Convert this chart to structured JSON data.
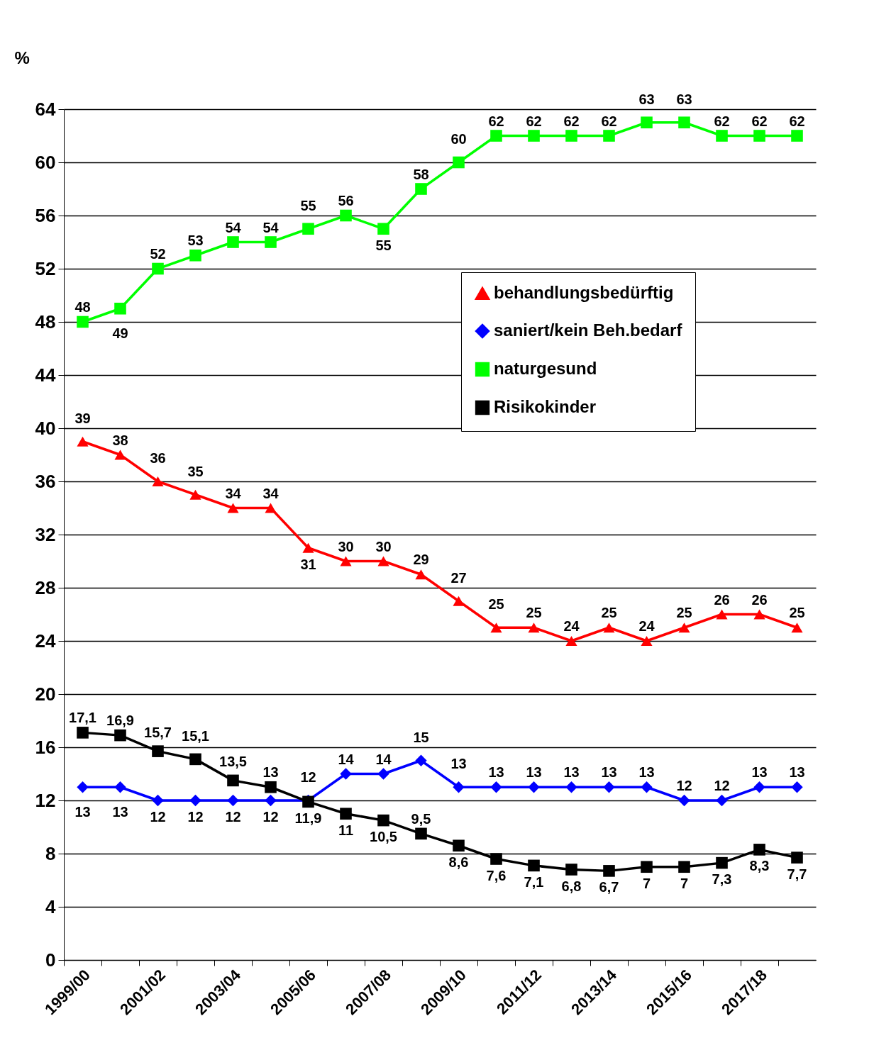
{
  "chart_data": {
    "type": "line",
    "ylabel": "%",
    "categories": [
      "1999/00",
      null,
      "2001/02",
      null,
      "2003/04",
      null,
      "2005/06",
      null,
      "2007/08",
      null,
      "2009/10",
      null,
      "2011/12",
      null,
      "2013/14",
      null,
      "2015/16",
      null,
      "2017/18",
      null
    ],
    "ylim": [
      0,
      64
    ],
    "yticks": [
      0,
      4,
      8,
      12,
      16,
      20,
      24,
      28,
      32,
      36,
      40,
      44,
      48,
      52,
      56,
      60,
      64
    ],
    "grid": "y",
    "legend": "top right",
    "series": [
      {
        "name": "behandlungsbedürftig",
        "color": "#ff0000",
        "marker": "triangle",
        "values": [
          39,
          38,
          36,
          35,
          34,
          34,
          31,
          30,
          30,
          29,
          27,
          25,
          25,
          24,
          25,
          24,
          25,
          26,
          26,
          25
        ],
        "value_labels": [
          "39",
          "38",
          "36",
          "35",
          "34",
          "34",
          "31",
          "30",
          "30",
          "29",
          "27",
          "25",
          "25",
          "24",
          "25",
          "24",
          "25",
          "26",
          "26",
          "25"
        ]
      },
      {
        "name": "saniert/kein Beh.bedarf",
        "color": "#0000ff",
        "marker": "diamond",
        "values": [
          13,
          13,
          12,
          12,
          12,
          12,
          12,
          14,
          14,
          15,
          13,
          13,
          13,
          13,
          13,
          13,
          12,
          12,
          13,
          13
        ],
        "value_labels": [
          "13",
          "13",
          "12",
          "12",
          "12",
          "12",
          "12",
          "14",
          "14",
          "15",
          "13",
          "13",
          "13",
          "13",
          "13",
          "13",
          "12",
          "12",
          "13",
          "13"
        ]
      },
      {
        "name": "naturgesund",
        "color": "#00ff00",
        "marker": "square",
        "values": [
          48,
          49,
          52,
          53,
          54,
          54,
          55,
          56,
          55,
          58,
          60,
          62,
          62,
          62,
          62,
          63,
          63,
          62,
          62,
          62
        ],
        "value_labels": [
          "48",
          "49",
          "52",
          "53",
          "54",
          "54",
          "55",
          "56",
          "55",
          "58",
          "60",
          "62",
          "62",
          "62",
          "62",
          "63",
          "63",
          "62",
          "62",
          "62"
        ]
      },
      {
        "name": "Risikokinder",
        "color": "#000000",
        "marker": "square",
        "values": [
          17.1,
          16.9,
          15.7,
          15.1,
          13.5,
          13,
          11.9,
          11,
          10.5,
          9.5,
          8.6,
          7.6,
          7.1,
          6.8,
          6.7,
          7,
          7,
          7.3,
          8.3,
          7.7
        ],
        "value_labels": [
          "17,1",
          "16,9",
          "15,7",
          "15,1",
          "13,5",
          "13",
          "11,9",
          "11",
          "10,5",
          "9,5",
          "8,6",
          "7,6",
          "7,1",
          "6,8",
          "6,7",
          "7",
          "7",
          "7,3",
          "8,3",
          "7,7"
        ]
      }
    ]
  }
}
